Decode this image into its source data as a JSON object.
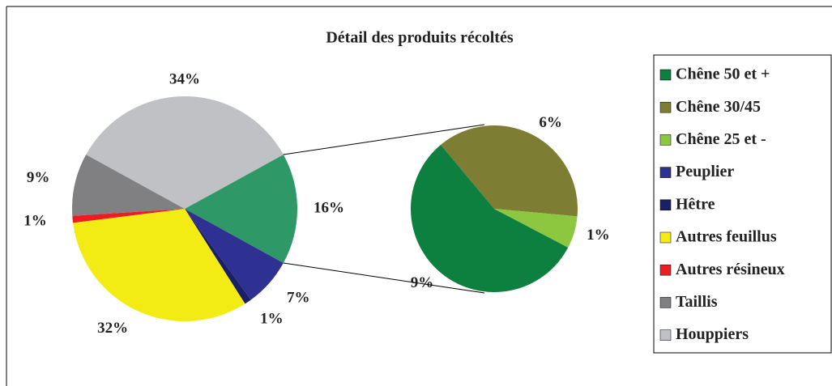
{
  "chart_data": {
    "type": "pie-of-pie",
    "title": "Détail des produits récoltés",
    "categories": [
      "Chêne 50 et +",
      "Chêne 30/45",
      "Chêne 25 et -",
      "Peuplier",
      "Hêtre",
      "Autres feuillus",
      "Autres résineux",
      "Taillis",
      "Houppiers"
    ],
    "colors": [
      "#0d8040",
      "#7d7d33",
      "#8dc63f",
      "#2e3192",
      "#1b1f66",
      "#f2eb14",
      "#ed1c24",
      "#808083",
      "#c0c1c4"
    ],
    "values": [
      9,
      6,
      1,
      7,
      1,
      32,
      1,
      9,
      34
    ],
    "value_labels": [
      "9%",
      "6%",
      "1%",
      "7%",
      "1%",
      "32%",
      "1%",
      "9%",
      "34%"
    ],
    "split": 3,
    "other": {
      "value": 16,
      "label": "16%",
      "color": "#2e9966"
    },
    "legend": "right"
  }
}
